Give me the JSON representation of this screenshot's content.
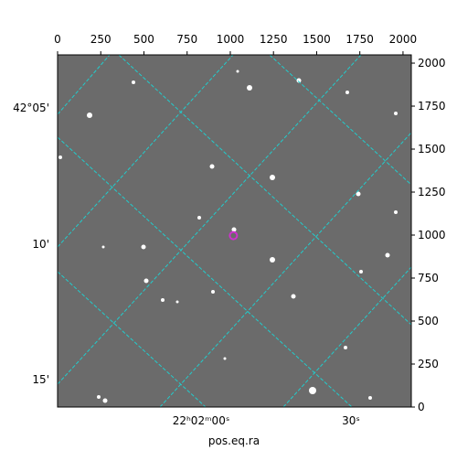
{
  "chart_data": {
    "type": "image",
    "xlabel": "pos.eq.ra",
    "xlim": [
      0,
      2048
    ],
    "ylim": [
      0,
      2048
    ],
    "xticks": [
      0,
      250,
      500,
      750,
      1000,
      1250,
      1500,
      1750,
      2000
    ],
    "yticks": [
      0,
      250,
      500,
      750,
      1000,
      1250,
      1500,
      1750,
      2000
    ],
    "world_x_labels": [
      "22ʰ02ᵐ00ˢ",
      "30ˢ"
    ],
    "world_y_labels": [
      "42°05'",
      "10'",
      "15'"
    ],
    "marker": {
      "x": 1018,
      "y": 997,
      "color": "#cc33cc"
    },
    "grid_color": "#22cccc"
  }
}
